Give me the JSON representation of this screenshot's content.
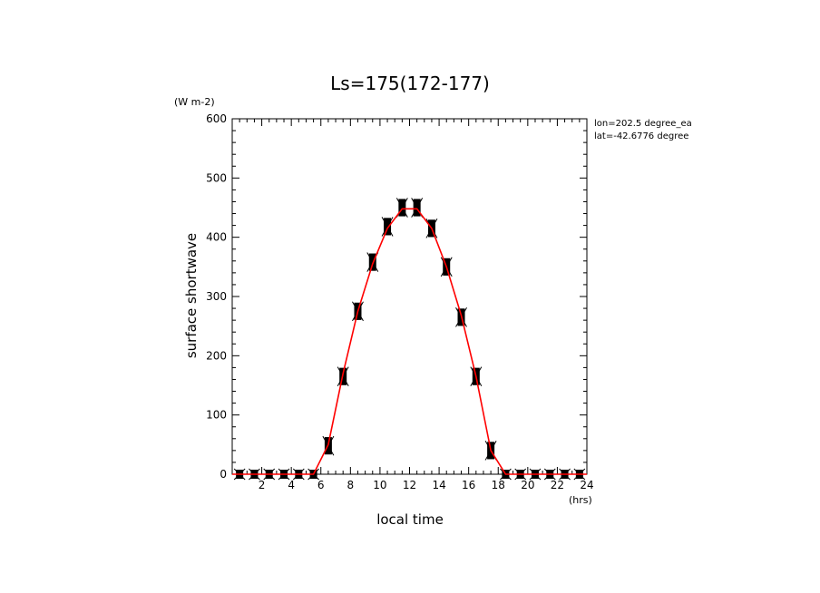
{
  "chart_data": {
    "type": "line",
    "title": "Ls=175(172-177)",
    "xlabel": "local time",
    "ylabel": "surface shortwave",
    "x_unit": "(hrs)",
    "y_unit": "(W m-2)",
    "xlim": [
      0,
      24
    ],
    "ylim": [
      0,
      600
    ],
    "x_ticks": [
      2,
      4,
      6,
      8,
      10,
      12,
      14,
      16,
      18,
      20,
      22,
      24
    ],
    "y_ticks": [
      0,
      100,
      200,
      300,
      400,
      500,
      600
    ],
    "annotations": [
      "lon=202.5 degree_ea",
      "lat=-42.6776 degree"
    ],
    "grid": false,
    "series": [
      {
        "type": "line",
        "color": "#ff0000",
        "x": [
          0,
          0.5,
          1.5,
          2.5,
          3.5,
          4.5,
          5.5,
          6.5,
          7.5,
          8.5,
          9.5,
          10.5,
          11.5,
          12.5,
          13.5,
          14.5,
          15.5,
          16.5,
          17.5,
          18.5,
          19.5,
          20.5,
          21.5,
          22.5,
          23.5,
          24
        ],
        "values": [
          0,
          0,
          0,
          0,
          0,
          0,
          0,
          50,
          170,
          275,
          355,
          415,
          448,
          448,
          415,
          350,
          268,
          165,
          40,
          0,
          0,
          0,
          0,
          0,
          0,
          0
        ]
      },
      {
        "type": "markers",
        "color": "#000000",
        "x": [
          0.5,
          1.5,
          2.5,
          3.5,
          4.5,
          5.5,
          6.5,
          7.5,
          8.5,
          9.5,
          10.5,
          11.5,
          12.5,
          13.5,
          14.5,
          15.5,
          16.5,
          17.5,
          18.5,
          19.5,
          20.5,
          21.5,
          22.5,
          23.5
        ],
        "values": [
          0,
          0,
          0,
          0,
          0,
          0,
          48,
          165,
          275,
          358,
          418,
          450,
          450,
          415,
          350,
          265,
          165,
          40,
          0,
          0,
          0,
          0,
          0,
          0
        ],
        "spread": [
          0,
          0,
          0,
          0,
          0,
          0,
          14,
          14,
          14,
          14,
          14,
          14,
          14,
          14,
          14,
          14,
          14,
          14,
          0,
          0,
          0,
          0,
          0,
          0
        ]
      }
    ]
  }
}
